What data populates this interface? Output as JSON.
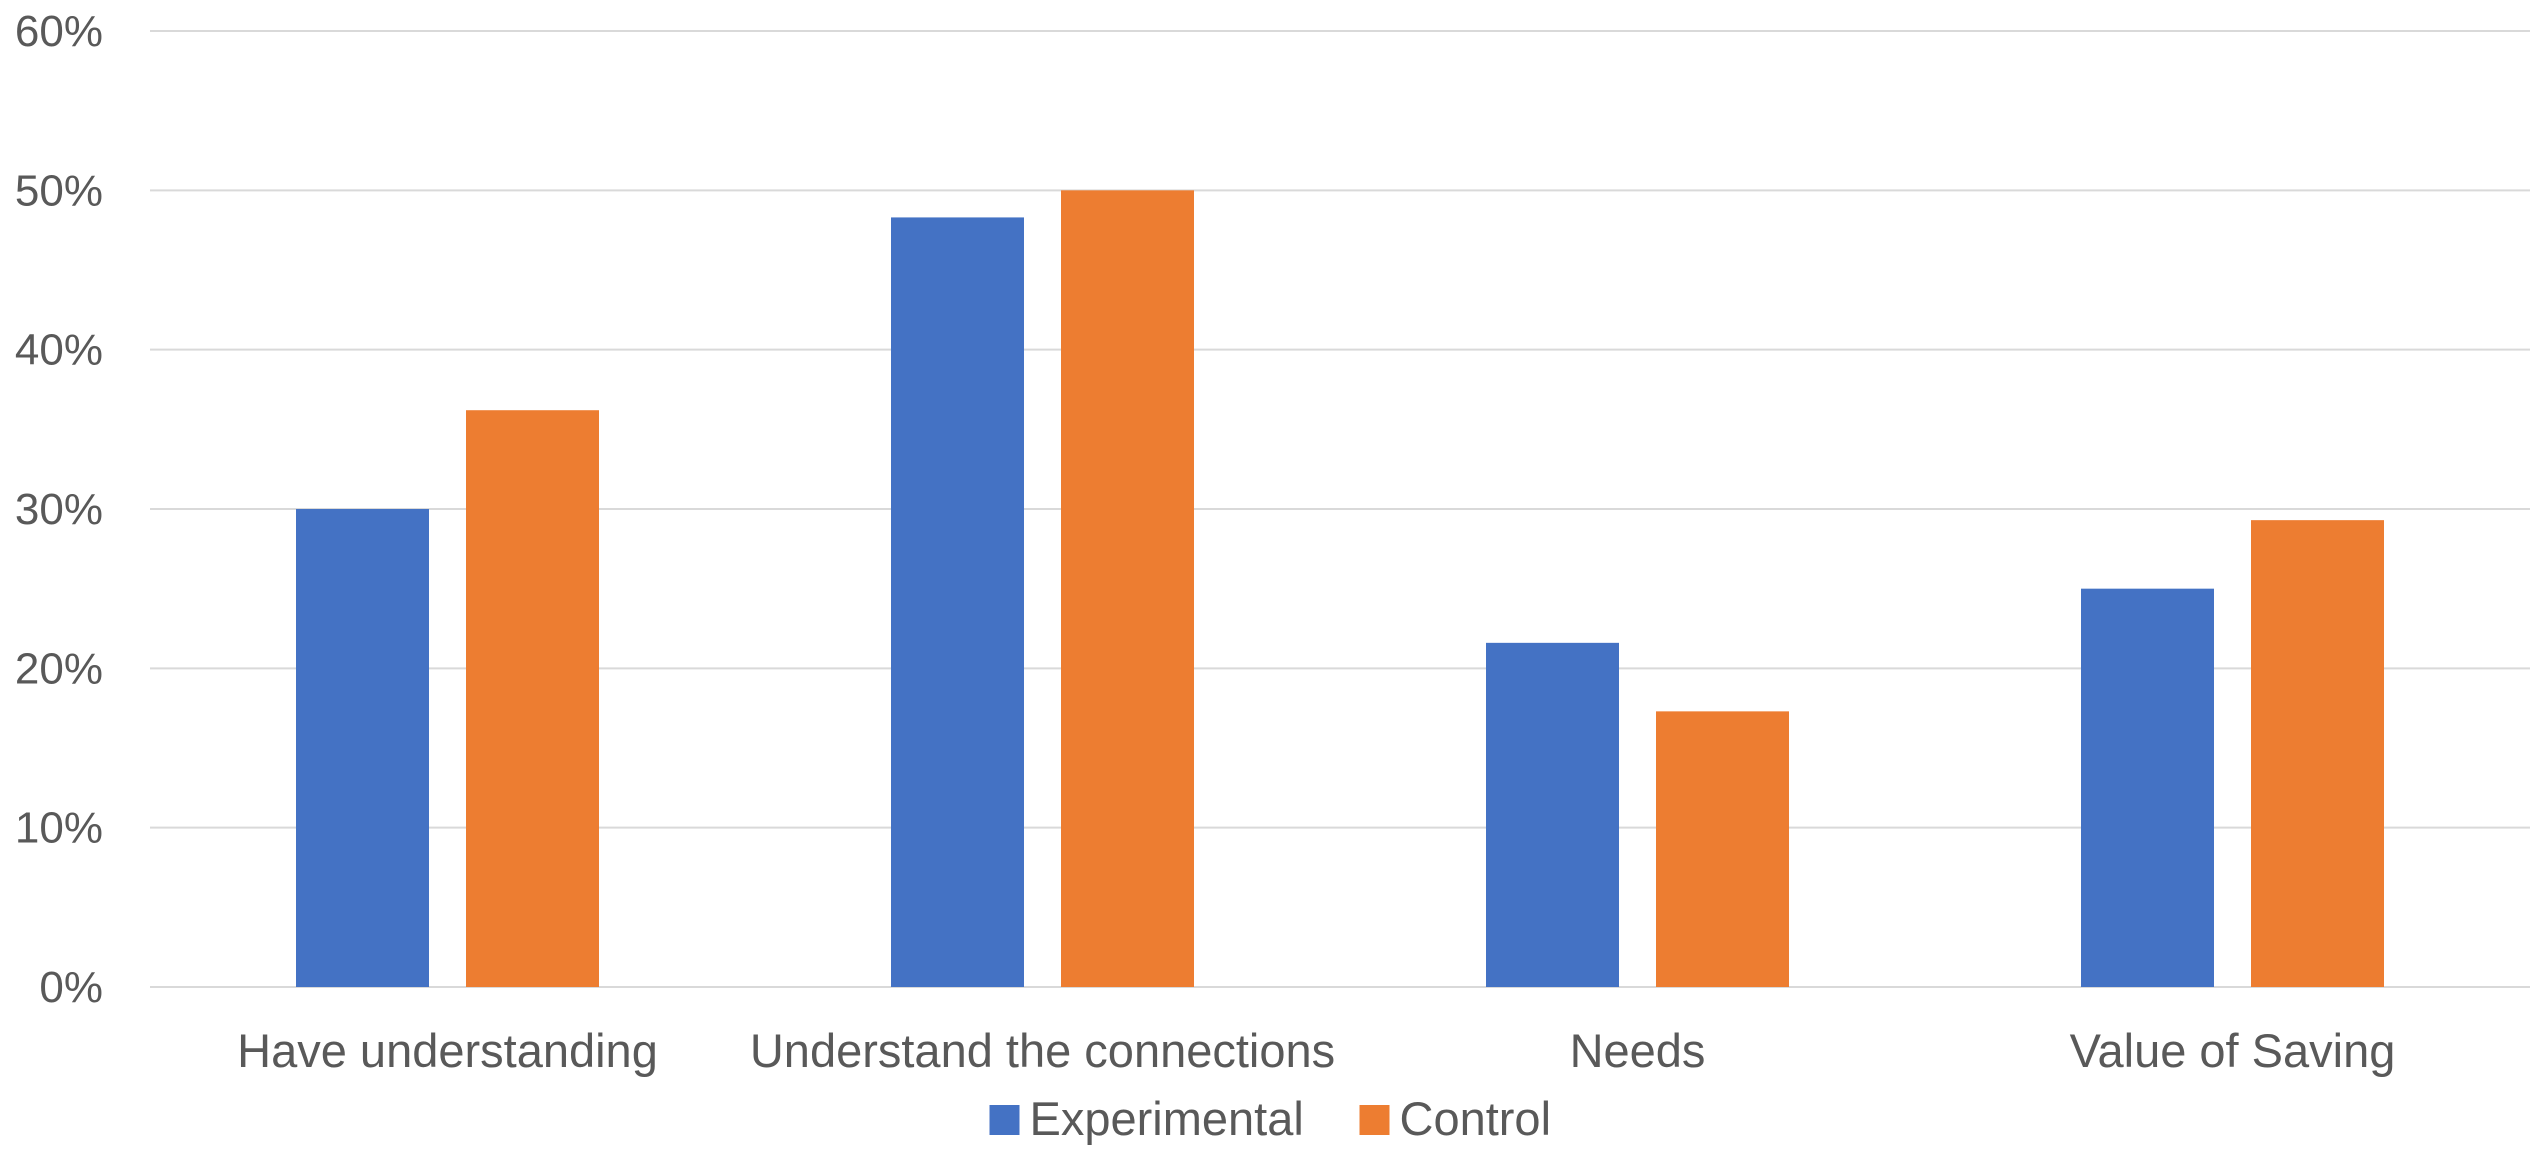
{
  "chart_data": {
    "type": "bar",
    "title": "",
    "xlabel": "",
    "ylabel": "",
    "categories": [
      "Have understanding",
      "Understand the connections",
      "Needs",
      "Value of Saving"
    ],
    "series": [
      {
        "name": "Experimental",
        "color": "#4472C4",
        "values": [
          0.3,
          0.483,
          0.216,
          0.25
        ]
      },
      {
        "name": "Control",
        "color": "#ED7D31",
        "values": [
          0.362,
          0.5,
          0.173,
          0.293
        ]
      }
    ],
    "ylim": [
      0,
      0.6
    ],
    "yticks": [
      0,
      0.1,
      0.2,
      0.3,
      0.4,
      0.5,
      0.6
    ],
    "ytick_labels": [
      "0%",
      "10%",
      "20%",
      "30%",
      "40%",
      "50%",
      "60%"
    ],
    "grid": true,
    "legend_position": "bottom"
  }
}
